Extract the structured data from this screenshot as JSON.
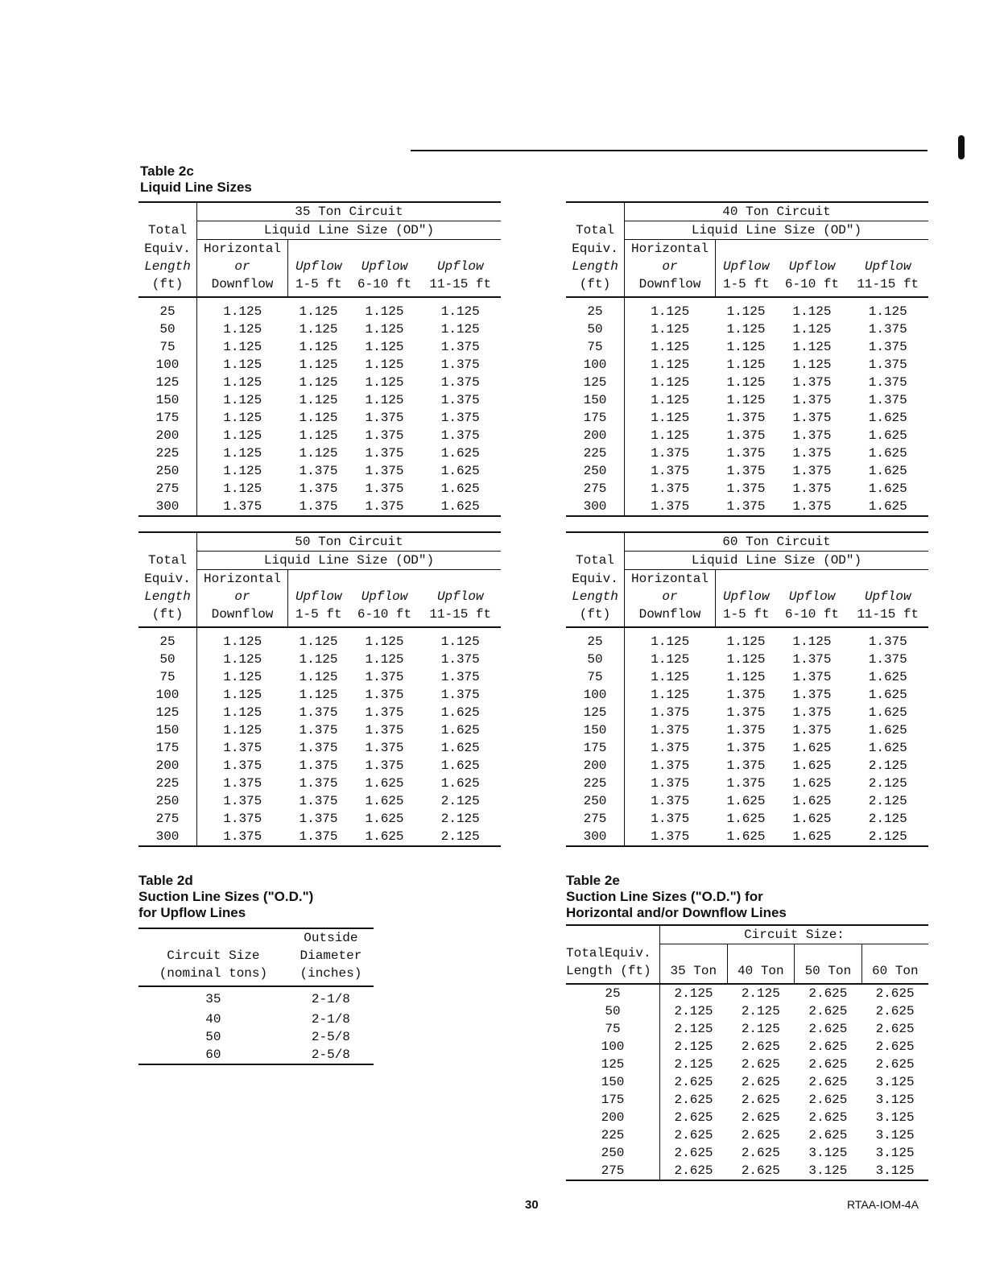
{
  "table_2c": {
    "label": "Table 2c",
    "title": "Liquid Line Sizes"
  },
  "liquid_header": {
    "size_label": "Liquid Line Size (OD\")",
    "col0": [
      "Total",
      "Equiv.",
      "Length",
      "(ft)"
    ],
    "col1": [
      "Horizontal",
      "or",
      "Downflow"
    ],
    "cols": [
      [
        "Upflow",
        "1-5 ft"
      ],
      [
        "Upflow",
        "6-10 ft"
      ],
      [
        "Upflow",
        "11-15 ft"
      ]
    ]
  },
  "liquid_tables": [
    {
      "circuit": "35 Ton Circuit",
      "rows": [
        [
          "25",
          "1.125",
          "1.125",
          "1.125",
          "1.125"
        ],
        [
          "50",
          "1.125",
          "1.125",
          "1.125",
          "1.125"
        ],
        [
          "75",
          "1.125",
          "1.125",
          "1.125",
          "1.375"
        ],
        [
          "100",
          "1.125",
          "1.125",
          "1.125",
          "1.375"
        ],
        [
          "125",
          "1.125",
          "1.125",
          "1.125",
          "1.375"
        ],
        [
          "150",
          "1.125",
          "1.125",
          "1.125",
          "1.375"
        ],
        [
          "175",
          "1.125",
          "1.125",
          "1.375",
          "1.375"
        ],
        [
          "200",
          "1.125",
          "1.125",
          "1.375",
          "1.375"
        ],
        [
          "225",
          "1.125",
          "1.125",
          "1.375",
          "1.625"
        ],
        [
          "250",
          "1.125",
          "1.375",
          "1.375",
          "1.625"
        ],
        [
          "275",
          "1.125",
          "1.375",
          "1.375",
          "1.625"
        ],
        [
          "300",
          "1.375",
          "1.375",
          "1.375",
          "1.625"
        ]
      ]
    },
    {
      "circuit": "40 Ton Circuit",
      "rows": [
        [
          "25",
          "1.125",
          "1.125",
          "1.125",
          "1.125"
        ],
        [
          "50",
          "1.125",
          "1.125",
          "1.125",
          "1.375"
        ],
        [
          "75",
          "1.125",
          "1.125",
          "1.125",
          "1.375"
        ],
        [
          "100",
          "1.125",
          "1.125",
          "1.125",
          "1.375"
        ],
        [
          "125",
          "1.125",
          "1.125",
          "1.375",
          "1.375"
        ],
        [
          "150",
          "1.125",
          "1.125",
          "1.375",
          "1.375"
        ],
        [
          "175",
          "1.125",
          "1.375",
          "1.375",
          "1.625"
        ],
        [
          "200",
          "1.125",
          "1.375",
          "1.375",
          "1.625"
        ],
        [
          "225",
          "1.375",
          "1.375",
          "1.375",
          "1.625"
        ],
        [
          "250",
          "1.375",
          "1.375",
          "1.375",
          "1.625"
        ],
        [
          "275",
          "1.375",
          "1.375",
          "1.375",
          "1.625"
        ],
        [
          "300",
          "1.375",
          "1.375",
          "1.375",
          "1.625"
        ]
      ]
    },
    {
      "circuit": "50 Ton Circuit",
      "rows": [
        [
          "25",
          "1.125",
          "1.125",
          "1.125",
          "1.125"
        ],
        [
          "50",
          "1.125",
          "1.125",
          "1.125",
          "1.375"
        ],
        [
          "75",
          "1.125",
          "1.125",
          "1.375",
          "1.375"
        ],
        [
          "100",
          "1.125",
          "1.125",
          "1.375",
          "1.375"
        ],
        [
          "125",
          "1.125",
          "1.375",
          "1.375",
          "1.625"
        ],
        [
          "150",
          "1.125",
          "1.375",
          "1.375",
          "1.625"
        ],
        [
          "175",
          "1.375",
          "1.375",
          "1.375",
          "1.625"
        ],
        [
          "200",
          "1.375",
          "1.375",
          "1.375",
          "1.625"
        ],
        [
          "225",
          "1.375",
          "1.375",
          "1.625",
          "1.625"
        ],
        [
          "250",
          "1.375",
          "1.375",
          "1.625",
          "2.125"
        ],
        [
          "275",
          "1.375",
          "1.375",
          "1.625",
          "2.125"
        ],
        [
          "300",
          "1.375",
          "1.375",
          "1.625",
          "2.125"
        ]
      ]
    },
    {
      "circuit": "60 Ton Circuit",
      "rows": [
        [
          "25",
          "1.125",
          "1.125",
          "1.125",
          "1.375"
        ],
        [
          "50",
          "1.125",
          "1.125",
          "1.375",
          "1.375"
        ],
        [
          "75",
          "1.125",
          "1.125",
          "1.375",
          "1.625"
        ],
        [
          "100",
          "1.125",
          "1.375",
          "1.375",
          "1.625"
        ],
        [
          "125",
          "1.375",
          "1.375",
          "1.375",
          "1.625"
        ],
        [
          "150",
          "1.375",
          "1.375",
          "1.375",
          "1.625"
        ],
        [
          "175",
          "1.375",
          "1.375",
          "1.625",
          "1.625"
        ],
        [
          "200",
          "1.375",
          "1.375",
          "1.625",
          "2.125"
        ],
        [
          "225",
          "1.375",
          "1.375",
          "1.625",
          "2.125"
        ],
        [
          "250",
          "1.375",
          "1.625",
          "1.625",
          "2.125"
        ],
        [
          "275",
          "1.375",
          "1.625",
          "1.625",
          "2.125"
        ],
        [
          "300",
          "1.375",
          "1.625",
          "1.625",
          "2.125"
        ]
      ]
    }
  ],
  "table_2d": {
    "label": "Table 2d",
    "title": [
      "Suction Line Sizes (\"O.D.\")",
      "for Upflow Lines"
    ],
    "headers": [
      [
        "",
        "Circuit Size",
        "(nominal tons)"
      ],
      [
        "Outside",
        "Diameter",
        "(inches)"
      ]
    ],
    "rows": [
      [
        "35",
        "2-1/8"
      ],
      [
        "40",
        "2-1/8"
      ],
      [
        "50",
        "2-5/8"
      ],
      [
        "60",
        "2-5/8"
      ]
    ]
  },
  "table_2e": {
    "label": "Table 2e",
    "title": [
      "Suction Line Sizes (\"O.D.\") for",
      "Horizontal and/or Downflow Lines"
    ],
    "group": "Circuit Size:",
    "col0": [
      "TotalEquiv.",
      "Length (ft)"
    ],
    "cols": [
      "35 Ton",
      "40 Ton",
      "50 Ton",
      "60 Ton"
    ],
    "rows": [
      [
        "25",
        "2.125",
        "2.125",
        "2.625",
        "2.625"
      ],
      [
        "50",
        "2.125",
        "2.125",
        "2.625",
        "2.625"
      ],
      [
        "75",
        "2.125",
        "2.125",
        "2.625",
        "2.625"
      ],
      [
        "100",
        "2.125",
        "2.625",
        "2.625",
        "2.625"
      ],
      [
        "125",
        "2.125",
        "2.625",
        "2.625",
        "2.625"
      ],
      [
        "150",
        "2.625",
        "2.625",
        "2.625",
        "3.125"
      ],
      [
        "175",
        "2.625",
        "2.625",
        "2.625",
        "3.125"
      ],
      [
        "200",
        "2.625",
        "2.625",
        "2.625",
        "3.125"
      ],
      [
        "225",
        "2.625",
        "2.625",
        "2.625",
        "3.125"
      ],
      [
        "250",
        "2.625",
        "2.625",
        "3.125",
        "3.125"
      ],
      [
        "275",
        "2.625",
        "2.625",
        "3.125",
        "3.125"
      ]
    ]
  },
  "footer": {
    "page_number": "30",
    "doc_code": "RTAA-IOM-4A"
  }
}
